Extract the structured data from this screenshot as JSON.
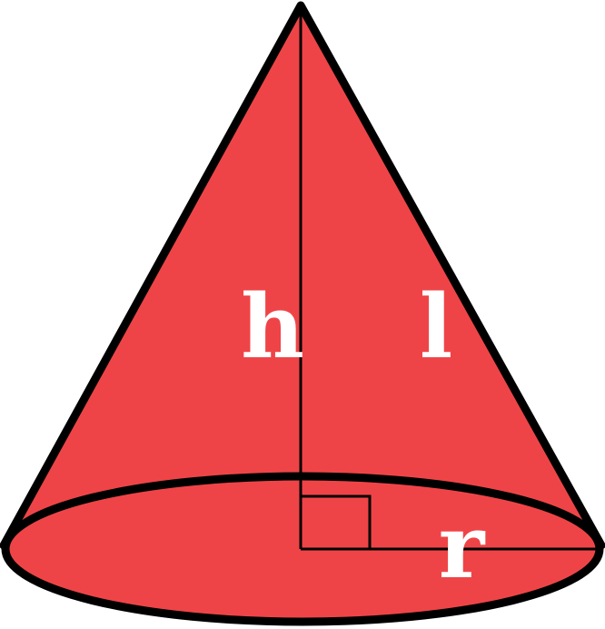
{
  "diagram": {
    "labels": {
      "height": "h",
      "slant": "l",
      "radius": "r"
    },
    "colors": {
      "fill": "#ef4447",
      "stroke": "#000000",
      "label": "#ffffff",
      "background": "#ffffff"
    }
  }
}
